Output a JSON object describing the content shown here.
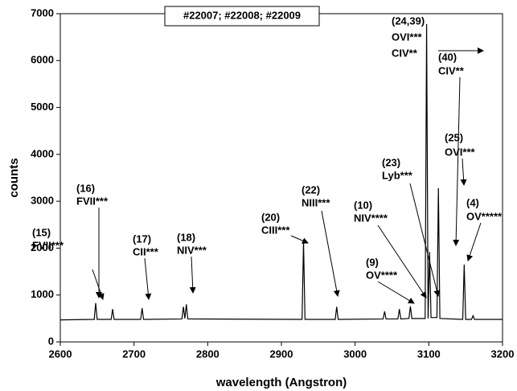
{
  "chart_data": {
    "type": "line",
    "title": "#22007; #22008; #22009",
    "xlabel": "wavelength (Angstron)",
    "ylabel": "counts",
    "x": [
      2600,
      2646,
      2648,
      2650,
      2669,
      2671,
      2673,
      2709,
      2711,
      2713,
      2765,
      2767,
      2769,
      2771,
      2773,
      2928,
      2930,
      2932,
      2973,
      2975,
      2977,
      3038,
      3040,
      3042,
      3058,
      3060,
      3062,
      3073,
      3075,
      3077,
      3095,
      3097,
      3099,
      3101,
      3103,
      3111,
      3113,
      3115,
      3146,
      3148,
      3150,
      3158,
      3160,
      3162,
      3200
    ],
    "values": [
      470,
      480,
      830,
      480,
      480,
      700,
      480,
      480,
      720,
      480,
      490,
      750,
      500,
      800,
      490,
      480,
      2130,
      480,
      480,
      750,
      480,
      490,
      650,
      490,
      490,
      700,
      490,
      500,
      760,
      500,
      500,
      6780,
      500,
      1920,
      520,
      520,
      3280,
      500,
      480,
      1650,
      480,
      480,
      560,
      480,
      480
    ],
    "color": "#000000",
    "xlim": [
      2600,
      3200
    ],
    "xticks": [
      2600,
      2700,
      2800,
      2900,
      3000,
      3100,
      3200
    ],
    "ylim": [
      0,
      7000
    ],
    "yticks": [
      0,
      1000,
      2000,
      3000,
      4000,
      5000,
      6000,
      7000
    ],
    "annotations": [
      [
        "(15)",
        "FVII***"
      ],
      [
        "(16)",
        "FVII***"
      ],
      [
        "(17)",
        "CII***"
      ],
      [
        "(18)",
        "NIV***"
      ],
      [
        "(20)",
        "CIII***"
      ],
      [
        "(22)",
        "NIII***"
      ],
      [
        "(9)",
        "OV****"
      ],
      [
        "(10)",
        "NIV****"
      ],
      [
        "(23)",
        "Lyb***"
      ],
      [
        "(24,39)",
        "OVI***",
        "CIV**"
      ],
      [
        "(40)",
        "CIV**"
      ],
      [
        "(25)",
        "OVI***"
      ],
      [
        "(4)",
        "OV*****"
      ]
    ]
  }
}
